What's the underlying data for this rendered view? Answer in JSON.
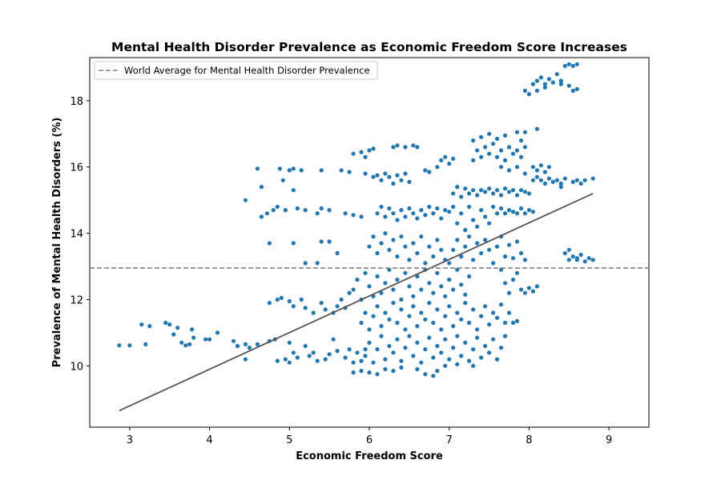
{
  "chart_data": {
    "type": "scatter",
    "title": "Mental Health Disorder Prevalence as Economic Freedom Score Increases",
    "xlabel": "Economic Freedom Score",
    "ylabel": "Prevalence of Mental Health Disorders (%)",
    "xlim": [
      2.5,
      9.5
    ],
    "ylim": [
      8.15,
      19.3
    ],
    "xticks": [
      3,
      4,
      5,
      6,
      7,
      8,
      9
    ],
    "yticks": [
      10,
      12,
      14,
      16,
      18
    ],
    "grid": false,
    "legend_position": "top-left",
    "point_color": "#1f77b4",
    "trend_color": "#555555",
    "reference_color": "#808080",
    "reference_line": {
      "label": "World Average for Mental Health Disorder Prevalence",
      "y": 12.95
    },
    "trend_line": {
      "x": [
        2.87,
        8.8
      ],
      "y": [
        8.65,
        15.2
      ]
    },
    "points": [
      [
        2.87,
        10.62
      ],
      [
        3.0,
        10.62
      ],
      [
        3.15,
        11.25
      ],
      [
        3.2,
        10.65
      ],
      [
        3.25,
        11.2
      ],
      [
        3.45,
        11.3
      ],
      [
        3.5,
        11.25
      ],
      [
        3.55,
        10.95
      ],
      [
        3.6,
        11.15
      ],
      [
        3.65,
        10.7
      ],
      [
        3.7,
        10.62
      ],
      [
        3.75,
        10.65
      ],
      [
        3.78,
        11.1
      ],
      [
        3.8,
        10.85
      ],
      [
        3.95,
        10.8
      ],
      [
        4.0,
        10.8
      ],
      [
        4.1,
        11.0
      ],
      [
        4.3,
        10.75
      ],
      [
        4.35,
        10.6
      ],
      [
        4.45,
        10.65
      ],
      [
        4.5,
        10.55
      ],
      [
        4.6,
        10.65
      ],
      [
        4.75,
        10.75
      ],
      [
        4.82,
        10.8
      ],
      [
        4.45,
        10.2
      ],
      [
        4.45,
        15.0
      ],
      [
        4.6,
        15.95
      ],
      [
        4.65,
        15.4
      ],
      [
        4.65,
        14.5
      ],
      [
        4.72,
        14.6
      ],
      [
        4.8,
        14.7
      ],
      [
        4.85,
        14.8
      ],
      [
        4.75,
        13.7
      ],
      [
        4.92,
        15.6
      ],
      [
        4.88,
        15.95
      ],
      [
        5.0,
        15.9
      ],
      [
        5.05,
        15.95
      ],
      [
        5.05,
        15.3
      ],
      [
        5.15,
        15.9
      ],
      [
        5.4,
        15.9
      ],
      [
        4.95,
        14.7
      ],
      [
        5.1,
        14.75
      ],
      [
        5.2,
        14.7
      ],
      [
        5.35,
        14.6
      ],
      [
        5.4,
        14.75
      ],
      [
        5.5,
        14.7
      ],
      [
        5.05,
        13.7
      ],
      [
        5.2,
        13.1
      ],
      [
        5.35,
        13.1
      ],
      [
        5.4,
        13.75
      ],
      [
        5.5,
        13.75
      ],
      [
        5.6,
        13.4
      ],
      [
        5.7,
        14.6
      ],
      [
        5.8,
        14.55
      ],
      [
        5.9,
        14.5
      ],
      [
        4.75,
        11.9
      ],
      [
        4.85,
        12.0
      ],
      [
        4.9,
        12.05
      ],
      [
        5.0,
        11.95
      ],
      [
        5.05,
        11.8
      ],
      [
        5.15,
        12.0
      ],
      [
        5.2,
        11.75
      ],
      [
        5.3,
        11.6
      ],
      [
        5.4,
        11.9
      ],
      [
        5.45,
        11.7
      ],
      [
        5.55,
        11.6
      ],
      [
        5.6,
        11.8
      ],
      [
        5.65,
        12.0
      ],
      [
        5.7,
        11.75
      ],
      [
        5.75,
        12.2
      ],
      [
        5.0,
        10.7
      ],
      [
        5.05,
        10.4
      ],
      [
        5.1,
        10.25
      ],
      [
        5.2,
        10.6
      ],
      [
        5.3,
        10.4
      ],
      [
        5.35,
        10.15
      ],
      [
        5.45,
        10.2
      ],
      [
        5.5,
        10.35
      ],
      [
        5.55,
        10.8
      ],
      [
        5.6,
        10.45
      ],
      [
        5.7,
        10.25
      ],
      [
        5.75,
        10.5
      ],
      [
        5.8,
        10.1
      ],
      [
        5.85,
        10.4
      ],
      [
        5.9,
        10.15
      ],
      [
        5.95,
        10.5
      ],
      [
        4.95,
        10.2
      ],
      [
        5.0,
        10.1
      ],
      [
        4.85,
        10.15
      ],
      [
        5.25,
        10.3
      ],
      [
        5.65,
        15.9
      ],
      [
        5.75,
        15.85
      ],
      [
        5.8,
        16.4
      ],
      [
        5.9,
        16.45
      ],
      [
        5.95,
        16.3
      ],
      [
        6.0,
        16.5
      ],
      [
        6.05,
        16.55
      ],
      [
        5.95,
        15.8
      ],
      [
        6.05,
        15.7
      ],
      [
        6.1,
        15.75
      ],
      [
        6.15,
        15.6
      ],
      [
        6.2,
        15.8
      ],
      [
        6.25,
        15.7
      ],
      [
        6.3,
        15.5
      ],
      [
        6.35,
        15.75
      ],
      [
        6.4,
        15.6
      ],
      [
        6.45,
        15.8
      ],
      [
        6.5,
        15.55
      ],
      [
        6.3,
        16.6
      ],
      [
        6.35,
        16.65
      ],
      [
        6.45,
        16.6
      ],
      [
        6.55,
        16.65
      ],
      [
        6.6,
        16.6
      ],
      [
        6.7,
        15.9
      ],
      [
        6.75,
        15.85
      ],
      [
        6.85,
        16.0
      ],
      [
        6.9,
        16.2
      ],
      [
        6.95,
        16.3
      ],
      [
        7.0,
        16.1
      ],
      [
        7.05,
        16.25
      ],
      [
        6.1,
        14.6
      ],
      [
        6.15,
        14.8
      ],
      [
        6.2,
        14.5
      ],
      [
        6.25,
        14.75
      ],
      [
        6.3,
        14.6
      ],
      [
        6.35,
        14.4
      ],
      [
        6.4,
        14.7
      ],
      [
        6.45,
        14.5
      ],
      [
        6.5,
        14.75
      ],
      [
        6.55,
        14.6
      ],
      [
        6.6,
        14.45
      ],
      [
        6.65,
        14.7
      ],
      [
        6.7,
        14.55
      ],
      [
        6.75,
        14.8
      ],
      [
        6.8,
        14.6
      ],
      [
        6.85,
        14.75
      ],
      [
        6.9,
        14.45
      ],
      [
        6.95,
        14.7
      ],
      [
        7.0,
        14.65
      ],
      [
        7.05,
        14.8
      ],
      [
        6.0,
        13.6
      ],
      [
        6.05,
        13.9
      ],
      [
        6.1,
        13.4
      ],
      [
        6.15,
        13.7
      ],
      [
        6.2,
        14.0
      ],
      [
        6.25,
        13.5
      ],
      [
        6.3,
        13.8
      ],
      [
        6.35,
        13.3
      ],
      [
        6.4,
        13.9
      ],
      [
        6.45,
        13.6
      ],
      [
        6.5,
        13.2
      ],
      [
        6.55,
        13.7
      ],
      [
        6.6,
        13.4
      ],
      [
        6.65,
        13.9
      ],
      [
        6.7,
        13.1
      ],
      [
        6.75,
        13.6
      ],
      [
        6.8,
        13.3
      ],
      [
        6.85,
        13.8
      ],
      [
        6.9,
        13.5
      ],
      [
        6.95,
        13.2
      ],
      [
        5.8,
        12.3
      ],
      [
        5.85,
        12.6
      ],
      [
        5.9,
        12.0
      ],
      [
        5.95,
        12.8
      ],
      [
        6.0,
        12.4
      ],
      [
        6.05,
        12.1
      ],
      [
        6.1,
        12.7
      ],
      [
        6.15,
        12.2
      ],
      [
        6.2,
        12.5
      ],
      [
        6.25,
        12.9
      ],
      [
        6.3,
        12.3
      ],
      [
        6.35,
        12.6
      ],
      [
        6.4,
        12.0
      ],
      [
        6.45,
        12.8
      ],
      [
        6.5,
        12.4
      ],
      [
        6.55,
        12.1
      ],
      [
        6.6,
        12.7
      ],
      [
        6.65,
        12.3
      ],
      [
        6.7,
        12.9
      ],
      [
        6.75,
        12.5
      ],
      [
        6.8,
        12.2
      ],
      [
        6.85,
        12.8
      ],
      [
        6.9,
        12.4
      ],
      [
        6.95,
        12.1
      ],
      [
        7.0,
        12.6
      ],
      [
        7.05,
        12.3
      ],
      [
        7.1,
        12.9
      ],
      [
        7.15,
        12.45
      ],
      [
        7.2,
        12.15
      ],
      [
        7.25,
        12.7
      ],
      [
        5.9,
        11.3
      ],
      [
        5.95,
        11.6
      ],
      [
        6.0,
        11.1
      ],
      [
        6.05,
        11.5
      ],
      [
        6.1,
        11.8
      ],
      [
        6.15,
        11.2
      ],
      [
        6.2,
        11.6
      ],
      [
        6.25,
        11.4
      ],
      [
        6.3,
        11.9
      ],
      [
        6.35,
        11.3
      ],
      [
        6.4,
        11.7
      ],
      [
        6.45,
        11.1
      ],
      [
        6.5,
        11.5
      ],
      [
        6.55,
        11.8
      ],
      [
        6.6,
        11.2
      ],
      [
        6.65,
        11.6
      ],
      [
        6.7,
        11.4
      ],
      [
        6.75,
        11.9
      ],
      [
        6.8,
        11.3
      ],
      [
        6.85,
        11.7
      ],
      [
        6.9,
        11.1
      ],
      [
        6.95,
        11.5
      ],
      [
        7.0,
        11.8
      ],
      [
        7.05,
        11.2
      ],
      [
        7.1,
        11.6
      ],
      [
        7.15,
        11.4
      ],
      [
        7.2,
        11.9
      ],
      [
        7.25,
        11.3
      ],
      [
        7.3,
        11.7
      ],
      [
        7.35,
        11.1
      ],
      [
        7.4,
        11.5
      ],
      [
        7.45,
        11.8
      ],
      [
        7.5,
        11.25
      ],
      [
        7.55,
        11.6
      ],
      [
        7.6,
        11.45
      ],
      [
        7.65,
        11.85
      ],
      [
        7.7,
        11.3
      ],
      [
        7.75,
        11.6
      ],
      [
        7.8,
        11.3
      ],
      [
        7.85,
        11.35
      ],
      [
        5.95,
        10.3
      ],
      [
        6.0,
        10.7
      ],
      [
        6.05,
        10.1
      ],
      [
        6.1,
        10.5
      ],
      [
        6.15,
        10.9
      ],
      [
        6.2,
        10.2
      ],
      [
        6.25,
        10.6
      ],
      [
        6.3,
        10.4
      ],
      [
        6.35,
        10.8
      ],
      [
        6.4,
        10.15
      ],
      [
        6.45,
        10.55
      ],
      [
        6.5,
        10.9
      ],
      [
        6.55,
        10.3
      ],
      [
        6.6,
        10.7
      ],
      [
        6.65,
        10.1
      ],
      [
        6.7,
        10.5
      ],
      [
        6.75,
        10.85
      ],
      [
        6.8,
        10.25
      ],
      [
        6.85,
        10.6
      ],
      [
        6.9,
        10.4
      ],
      [
        6.95,
        10.8
      ],
      [
        7.0,
        10.2
      ],
      [
        7.05,
        10.55
      ],
      [
        7.1,
        10.9
      ],
      [
        7.15,
        10.3
      ],
      [
        7.2,
        10.7
      ],
      [
        7.25,
        10.15
      ],
      [
        7.3,
        10.5
      ],
      [
        7.35,
        10.85
      ],
      [
        7.4,
        10.25
      ],
      [
        7.45,
        10.6
      ],
      [
        7.5,
        10.4
      ],
      [
        7.55,
        10.8
      ],
      [
        7.6,
        10.2
      ],
      [
        7.65,
        10.55
      ],
      [
        7.7,
        10.9
      ],
      [
        5.8,
        9.8
      ],
      [
        5.9,
        9.85
      ],
      [
        6.0,
        9.8
      ],
      [
        6.1,
        9.75
      ],
      [
        6.2,
        9.9
      ],
      [
        6.3,
        9.85
      ],
      [
        6.4,
        9.95
      ],
      [
        6.6,
        9.9
      ],
      [
        6.7,
        9.75
      ],
      [
        6.8,
        9.7
      ],
      [
        6.85,
        9.85
      ],
      [
        6.95,
        10.0
      ],
      [
        7.1,
        10.05
      ],
      [
        7.3,
        10.0
      ],
      [
        7.0,
        13.1
      ],
      [
        7.05,
        13.5
      ],
      [
        7.1,
        13.8
      ],
      [
        7.15,
        13.3
      ],
      [
        7.2,
        13.6
      ],
      [
        7.25,
        13.9
      ],
      [
        7.3,
        13.2
      ],
      [
        7.35,
        13.7
      ],
      [
        7.4,
        13.4
      ],
      [
        7.45,
        13.8
      ],
      [
        7.5,
        13.5
      ],
      [
        7.55,
        13.1
      ],
      [
        7.6,
        13.6
      ],
      [
        7.65,
        13.9
      ],
      [
        7.7,
        13.3
      ],
      [
        7.75,
        13.65
      ],
      [
        7.8,
        13.25
      ],
      [
        7.85,
        13.75
      ],
      [
        7.9,
        13.4
      ],
      [
        7.95,
        13.2
      ],
      [
        7.9,
        12.3
      ],
      [
        7.95,
        12.2
      ],
      [
        8.0,
        12.35
      ],
      [
        8.05,
        12.25
      ],
      [
        8.1,
        12.4
      ],
      [
        7.8,
        12.6
      ],
      [
        7.85,
        12.8
      ],
      [
        7.65,
        12.9
      ],
      [
        7.7,
        12.5
      ],
      [
        7.75,
        12.2
      ],
      [
        7.1,
        14.3
      ],
      [
        7.15,
        14.6
      ],
      [
        7.2,
        14.1
      ],
      [
        7.25,
        14.8
      ],
      [
        7.3,
        14.4
      ],
      [
        7.35,
        14.2
      ],
      [
        7.4,
        14.7
      ],
      [
        7.45,
        14.5
      ],
      [
        7.5,
        14.3
      ],
      [
        7.55,
        14.8
      ],
      [
        7.6,
        14.6
      ],
      [
        7.65,
        14.75
      ],
      [
        7.7,
        14.6
      ],
      [
        7.75,
        14.7
      ],
      [
        7.8,
        14.65
      ],
      [
        7.85,
        14.6
      ],
      [
        7.9,
        14.75
      ],
      [
        7.95,
        14.6
      ],
      [
        8.0,
        14.7
      ],
      [
        8.05,
        14.65
      ],
      [
        7.05,
        15.2
      ],
      [
        7.1,
        15.4
      ],
      [
        7.15,
        15.1
      ],
      [
        7.2,
        15.35
      ],
      [
        7.25,
        15.2
      ],
      [
        7.3,
        15.3
      ],
      [
        7.35,
        15.15
      ],
      [
        7.4,
        15.3
      ],
      [
        7.45,
        15.25
      ],
      [
        7.5,
        15.35
      ],
      [
        7.55,
        15.2
      ],
      [
        7.6,
        15.3
      ],
      [
        7.65,
        15.15
      ],
      [
        7.7,
        15.35
      ],
      [
        7.75,
        15.25
      ],
      [
        7.8,
        15.3
      ],
      [
        7.85,
        15.15
      ],
      [
        7.9,
        15.3
      ],
      [
        7.95,
        15.25
      ],
      [
        8.0,
        15.2
      ],
      [
        7.3,
        16.2
      ],
      [
        7.35,
        16.5
      ],
      [
        7.4,
        16.3
      ],
      [
        7.45,
        16.6
      ],
      [
        7.5,
        16.4
      ],
      [
        7.55,
        16.7
      ],
      [
        7.6,
        16.3
      ],
      [
        7.65,
        16.5
      ],
      [
        7.7,
        16.2
      ],
      [
        7.75,
        16.6
      ],
      [
        7.8,
        16.4
      ],
      [
        7.85,
        16.5
      ],
      [
        7.9,
        16.3
      ],
      [
        7.95,
        16.6
      ],
      [
        7.3,
        16.8
      ],
      [
        7.4,
        16.9
      ],
      [
        7.5,
        17.0
      ],
      [
        7.6,
        16.85
      ],
      [
        7.7,
        16.95
      ],
      [
        7.85,
        17.05
      ],
      [
        7.9,
        16.8
      ],
      [
        7.95,
        17.05
      ],
      [
        7.65,
        16.0
      ],
      [
        7.75,
        15.9
      ],
      [
        7.85,
        16.0
      ],
      [
        7.95,
        15.8
      ],
      [
        8.1,
        17.15
      ],
      [
        8.05,
        16.0
      ],
      [
        8.1,
        15.9
      ],
      [
        8.15,
        16.05
      ],
      [
        8.2,
        15.85
      ],
      [
        8.25,
        16.0
      ],
      [
        8.05,
        15.6
      ],
      [
        8.1,
        15.7
      ],
      [
        8.15,
        15.6
      ],
      [
        8.2,
        15.5
      ],
      [
        8.25,
        15.65
      ],
      [
        8.3,
        15.55
      ],
      [
        8.35,
        15.6
      ],
      [
        8.4,
        15.5
      ],
      [
        8.45,
        15.65
      ],
      [
        8.55,
        15.55
      ],
      [
        8.6,
        15.6
      ],
      [
        8.7,
        15.6
      ],
      [
        8.8,
        15.65
      ],
      [
        8.65,
        15.5
      ],
      [
        8.4,
        15.4
      ],
      [
        8.45,
        13.4
      ],
      [
        8.5,
        13.5
      ],
      [
        8.55,
        13.3
      ],
      [
        8.6,
        13.2
      ],
      [
        8.65,
        13.35
      ],
      [
        8.7,
        13.15
      ],
      [
        8.75,
        13.25
      ],
      [
        8.8,
        13.2
      ],
      [
        8.5,
        13.2
      ],
      [
        8.6,
        13.25
      ],
      [
        7.95,
        18.3
      ],
      [
        8.0,
        18.2
      ],
      [
        8.05,
        18.5
      ],
      [
        8.1,
        18.6
      ],
      [
        8.15,
        18.7
      ],
      [
        8.2,
        18.4
      ],
      [
        8.25,
        18.65
      ],
      [
        8.3,
        18.55
      ],
      [
        8.35,
        18.8
      ],
      [
        8.4,
        18.6
      ],
      [
        8.45,
        19.05
      ],
      [
        8.5,
        19.1
      ],
      [
        8.55,
        19.05
      ],
      [
        8.6,
        19.1
      ],
      [
        8.5,
        18.45
      ],
      [
        8.55,
        18.3
      ],
      [
        8.6,
        18.35
      ],
      [
        8.4,
        18.5
      ],
      [
        8.1,
        18.3
      ],
      [
        8.2,
        18.5
      ]
    ]
  }
}
